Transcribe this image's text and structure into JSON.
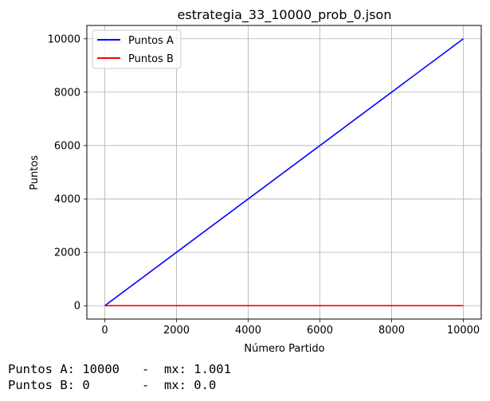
{
  "chart_data": {
    "type": "line",
    "title": "estrategia_33_10000_prob_0.json",
    "xlabel": "Número Partido",
    "ylabel": "Puntos",
    "xlim": [
      -500,
      10500
    ],
    "ylim": [
      -500,
      10500
    ],
    "xticks": [
      0,
      2000,
      4000,
      6000,
      8000,
      10000
    ],
    "yticks": [
      0,
      2000,
      4000,
      6000,
      8000,
      10000
    ],
    "grid": true,
    "legend_position": "top-left",
    "series": [
      {
        "name": "Puntos A",
        "color": "#0000ff",
        "x": [
          0,
          10000
        ],
        "y": [
          0,
          10000
        ]
      },
      {
        "name": "Puntos B",
        "color": "#ff0000",
        "x": [
          0,
          10000
        ],
        "y": [
          0,
          0
        ]
      }
    ]
  },
  "summary": {
    "line_a": "Puntos A: 10000   -  mx: 1.001",
    "line_b": "Puntos B: 0       -  mx: 0.0"
  }
}
